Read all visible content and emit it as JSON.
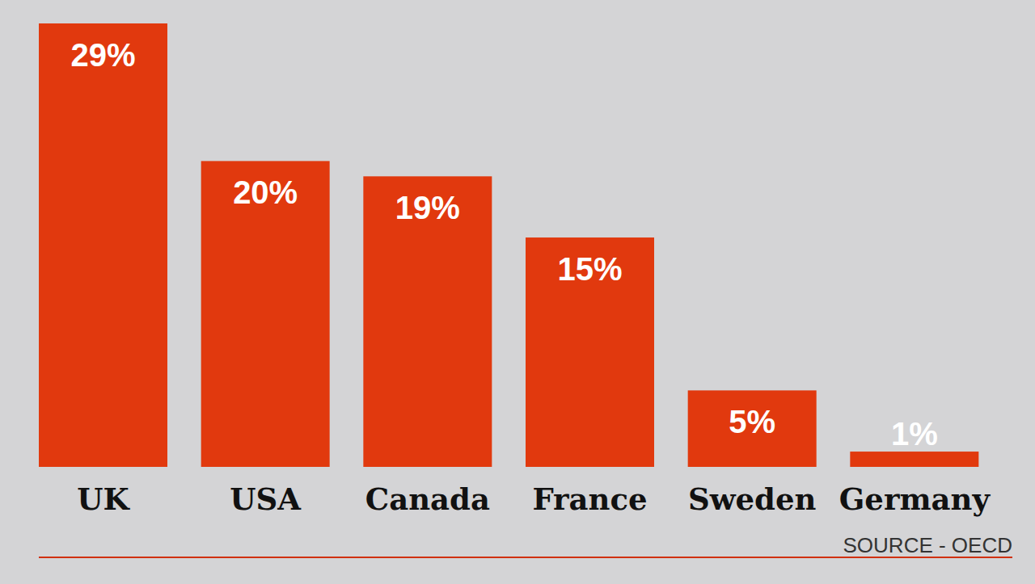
{
  "chart_data": {
    "type": "bar",
    "categories": [
      "UK",
      "USA",
      "Canada",
      "France",
      "Sweden",
      "Germany"
    ],
    "values": [
      29,
      20,
      19,
      15,
      5,
      1
    ],
    "value_labels": [
      "29%",
      "20%",
      "19%",
      "15%",
      "5%",
      "1%"
    ],
    "color": "#e1390e",
    "ylim": [
      0,
      29
    ],
    "data_labels": true,
    "tick_labels": "x",
    "annotations": [
      "SOURCE - OECD"
    ]
  }
}
